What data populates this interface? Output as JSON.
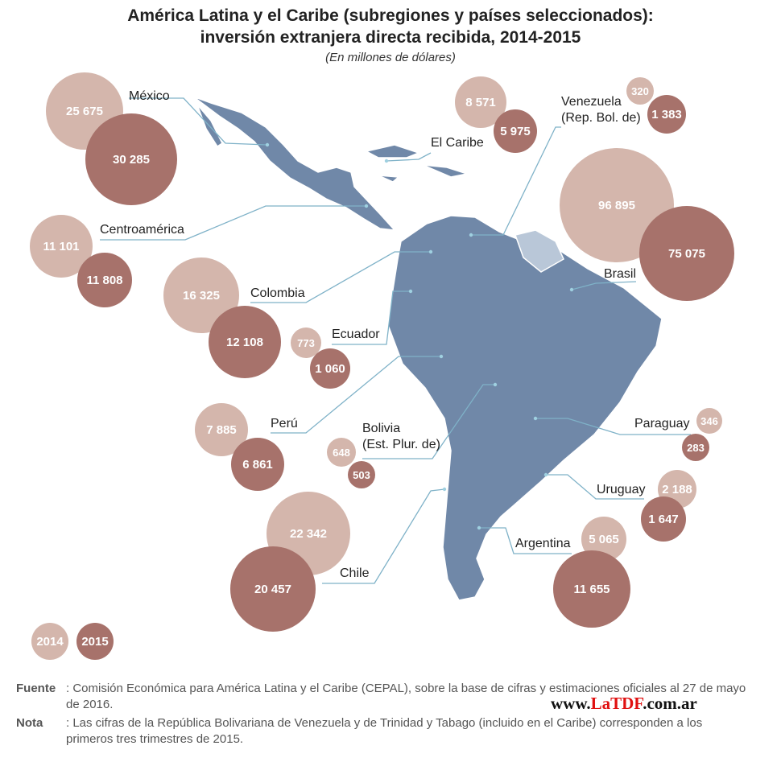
{
  "title_line1": "América Latina y el Caribe (subregiones y países seleccionados):",
  "title_line2": "inversión extranjera directa recibida, 2014-2015",
  "subtitle": "(En millones de dólares)",
  "colors": {
    "y2014": "#d4b6ac",
    "y2015": "#a7726b",
    "map": "#7088a8",
    "guianas": "#b9c7d8",
    "leader": "#7fb2c8"
  },
  "legend": {
    "y2014": "2014",
    "y2015": "2015"
  },
  "chart_data": {
    "type": "bubble-map",
    "series": [
      "2014",
      "2015"
    ],
    "regions": [
      {
        "id": "mexico",
        "name": "México",
        "v2014": "25 675",
        "v2015": "30 285"
      },
      {
        "id": "caribe",
        "name": "El Caribe",
        "v2014": "8 571",
        "v2015": "5 975"
      },
      {
        "id": "venezuela",
        "name": "Venezuela\n(Rep. Bol. de)",
        "v2014": "320",
        "v2015": "1 383"
      },
      {
        "id": "brasil",
        "name": "Brasil",
        "v2014": "96 895",
        "v2015": "75 075"
      },
      {
        "id": "centro",
        "name": "Centroamérica",
        "v2014": "11 101",
        "v2015": "11 808"
      },
      {
        "id": "colombia",
        "name": "Colombia",
        "v2014": "16 325",
        "v2015": "12 108"
      },
      {
        "id": "ecuador",
        "name": "Ecuador",
        "v2014": "773",
        "v2015": "1 060"
      },
      {
        "id": "peru",
        "name": "Perú",
        "v2014": "7 885",
        "v2015": "6 861"
      },
      {
        "id": "bolivia",
        "name": "Bolivia\n(Est. Plur. de)",
        "v2014": "648",
        "v2015": "503"
      },
      {
        "id": "paraguay",
        "name": "Paraguay",
        "v2014": "346",
        "v2015": "283"
      },
      {
        "id": "uruguay",
        "name": "Uruguay",
        "v2014": "2 188",
        "v2015": "1 647"
      },
      {
        "id": "chile",
        "name": "Chile",
        "v2014": "22 342",
        "v2015": "20 457"
      },
      {
        "id": "argentina",
        "name": "Argentina",
        "v2014": "5 065",
        "v2015": "11 655"
      }
    ]
  },
  "footer": {
    "source_label": "Fuente",
    "source_text": ": Comisión Económica para América Latina y el Caribe (CEPAL), sobre la base de cifras y estimaciones oficiales al 27 de mayo de 2016.",
    "note_label": "Nota",
    "note_text": ": Las cifras de la República Bolivariana de Venezuela y de Trinidad y Tabago (incluido en el Caribe) corresponden a los primeros tres trimestres de 2015."
  },
  "watermark": {
    "pre": "www.",
    "brand": "LaTDF",
    "post": ".com.ar"
  }
}
